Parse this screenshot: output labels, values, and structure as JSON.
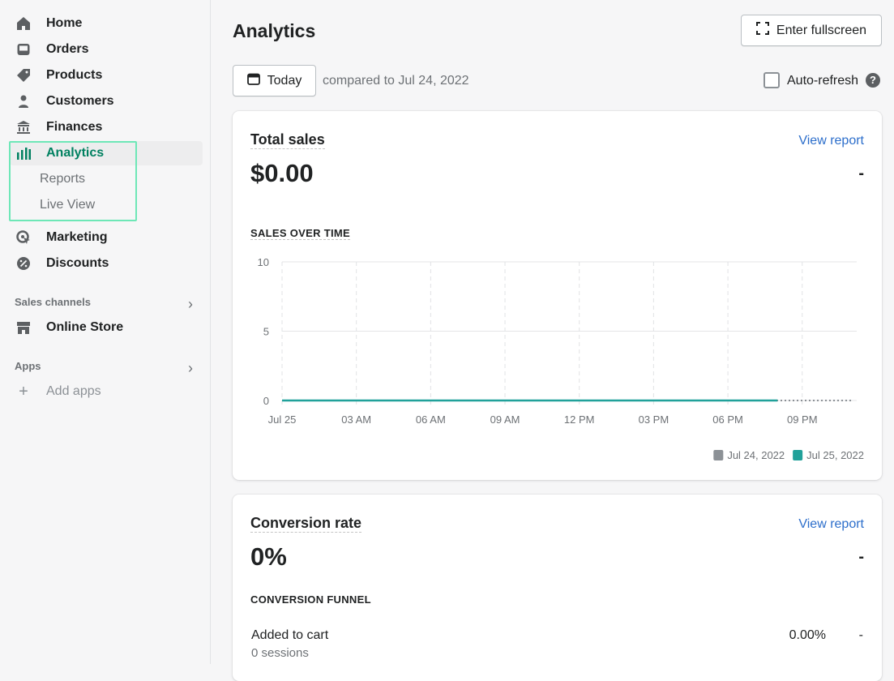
{
  "sidebar": {
    "items": [
      {
        "label": "Home",
        "icon": "home-icon"
      },
      {
        "label": "Orders",
        "icon": "inbox-icon"
      },
      {
        "label": "Products",
        "icon": "tag-icon"
      },
      {
        "label": "Customers",
        "icon": "person-icon"
      },
      {
        "label": "Finances",
        "icon": "bank-icon"
      },
      {
        "label": "Analytics",
        "icon": "bar-chart-icon"
      },
      {
        "label": "Reports"
      },
      {
        "label": "Live View"
      },
      {
        "label": "Marketing",
        "icon": "target-icon"
      },
      {
        "label": "Discounts",
        "icon": "discount-icon"
      }
    ],
    "sales_channels": "Sales channels",
    "online_store": "Online Store",
    "apps": "Apps",
    "add_apps": "Add apps",
    "active_color": "#008060"
  },
  "header": {
    "title": "Analytics",
    "fullscreen": "Enter fullscreen",
    "date": "Today",
    "compared": "compared to Jul 24, 2022",
    "auto_refresh": "Auto-refresh",
    "auto_refresh_checked": false
  },
  "total_sales": {
    "title": "Total sales",
    "view_report": "View report",
    "value": "$0.00",
    "change": "-",
    "chart_title": "SALES OVER TIME"
  },
  "conversion": {
    "title": "Conversion rate",
    "view_report": "View report",
    "value": "0%",
    "change": "-",
    "funnel_title": "CONVERSION FUNNEL",
    "rows": [
      {
        "label": "Added to cart",
        "sessions": "0 sessions",
        "percent": "0.00%",
        "change": "-"
      }
    ]
  },
  "chart_data": {
    "type": "line",
    "x_ticks": [
      "Jul 25",
      "03 AM",
      "06 AM",
      "09 AM",
      "12 PM",
      "03 PM",
      "06 PM",
      "09 PM"
    ],
    "x_tick_hours": [
      0,
      3,
      6,
      9,
      12,
      15,
      18,
      21
    ],
    "xlim": [
      0,
      23.2
    ],
    "ylim": [
      0,
      10
    ],
    "y_ticks": [
      0,
      5,
      10
    ],
    "grid": true,
    "legend_position": "bottom-right",
    "series": [
      {
        "name": "Jul 24, 2022",
        "color": "#8c9196",
        "style": "dotted",
        "x": [
          0,
          23
        ],
        "y": [
          0,
          0
        ]
      },
      {
        "name": "Jul 25, 2022",
        "color": "#21a19a",
        "style": "solid",
        "x": [
          0,
          20
        ],
        "y": [
          0,
          0
        ]
      }
    ]
  }
}
